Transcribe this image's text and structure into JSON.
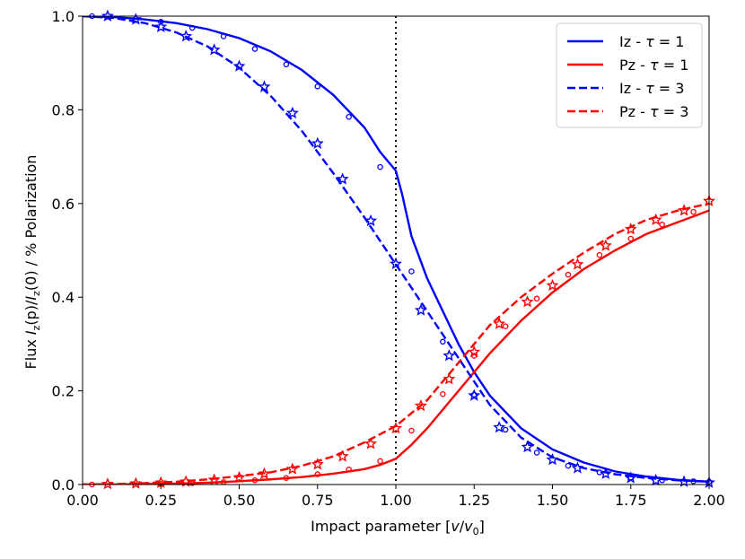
{
  "chart_data": {
    "type": "line",
    "xlabel_prefix": "Impact parameter [",
    "xlabel_var": "v",
    "xlabel_slash": "/",
    "xlabel_sub_var": "v",
    "xlabel_sub": "0",
    "xlabel_suffix": "]",
    "ylabel_prefix": "Flux ",
    "ylabel_I": "I",
    "ylabel_z": "z",
    "ylabel_p": "(p)/",
    "ylabel_I2": "I",
    "ylabel_z2": "z",
    "ylabel_rest": "(0) / % Polarization",
    "xlim": [
      0.0,
      2.0
    ],
    "ylim": [
      0.0,
      1.0
    ],
    "x_ticks": [
      "0.00",
      "0.25",
      "0.50",
      "0.75",
      "1.00",
      "1.25",
      "1.50",
      "1.75",
      "2.00"
    ],
    "x_tick_values": [
      0.0,
      0.25,
      0.5,
      0.75,
      1.0,
      1.25,
      1.5,
      1.75,
      2.0
    ],
    "y_ticks": [
      "0.0",
      "0.2",
      "0.4",
      "0.6",
      "0.8",
      "1.0"
    ],
    "y_tick_values": [
      0.0,
      0.2,
      0.4,
      0.6,
      0.8,
      1.0
    ],
    "vline_x": 1.0,
    "legend_position": "top-right",
    "colors": {
      "blue": "#0000ff",
      "red": "#ff0000"
    },
    "series": [
      {
        "name": "Iz - τ = 1",
        "legend_prefix": "Iz  - ",
        "legend_tau": "τ",
        "legend_suffix": " = 1",
        "color": "#0000ff",
        "style": "solid",
        "x": [
          0.0,
          0.1,
          0.2,
          0.3,
          0.4,
          0.5,
          0.6,
          0.7,
          0.8,
          0.9,
          0.95,
          1.0,
          1.02,
          1.05,
          1.1,
          1.15,
          1.2,
          1.25,
          1.3,
          1.4,
          1.5,
          1.6,
          1.7,
          1.8,
          1.9,
          2.0
        ],
        "y": [
          1.0,
          0.998,
          0.993,
          0.985,
          0.972,
          0.953,
          0.925,
          0.885,
          0.832,
          0.762,
          0.71,
          0.67,
          0.62,
          0.53,
          0.44,
          0.37,
          0.3,
          0.24,
          0.19,
          0.12,
          0.075,
          0.047,
          0.028,
          0.017,
          0.01,
          0.006
        ]
      },
      {
        "name": "Pz - τ = 1",
        "legend_prefix": "Pz  - ",
        "legend_tau": "τ",
        "legend_suffix": " = 1",
        "color": "#ff0000",
        "style": "solid",
        "x": [
          0.0,
          0.1,
          0.2,
          0.3,
          0.4,
          0.5,
          0.6,
          0.7,
          0.8,
          0.9,
          0.95,
          1.0,
          1.05,
          1.1,
          1.15,
          1.2,
          1.25,
          1.3,
          1.4,
          1.5,
          1.6,
          1.7,
          1.8,
          1.9,
          2.0
        ],
        "y": [
          0.0,
          0.0,
          0.001,
          0.002,
          0.004,
          0.007,
          0.011,
          0.016,
          0.023,
          0.033,
          0.042,
          0.055,
          0.085,
          0.12,
          0.16,
          0.2,
          0.24,
          0.28,
          0.35,
          0.41,
          0.46,
          0.5,
          0.535,
          0.56,
          0.585
        ]
      },
      {
        "name": "Iz - τ = 3",
        "legend_prefix": "Iz  - ",
        "legend_tau": "τ",
        "legend_suffix": " = 3",
        "color": "#0000ff",
        "style": "dashed",
        "x": [
          0.0,
          0.1,
          0.2,
          0.3,
          0.4,
          0.5,
          0.6,
          0.7,
          0.8,
          0.9,
          1.0,
          1.1,
          1.2,
          1.3,
          1.4,
          1.5,
          1.6,
          1.7,
          1.8,
          1.9,
          2.0
        ],
        "y": [
          1.0,
          0.996,
          0.985,
          0.965,
          0.935,
          0.89,
          0.83,
          0.755,
          0.665,
          0.57,
          0.47,
          0.37,
          0.27,
          0.17,
          0.1,
          0.058,
          0.035,
          0.022,
          0.014,
          0.009,
          0.006
        ]
      },
      {
        "name": "Pz - τ = 3",
        "legend_prefix": "Pz  - ",
        "legend_tau": "τ",
        "legend_suffix": " = 3",
        "color": "#ff0000",
        "style": "dashed",
        "x": [
          0.0,
          0.1,
          0.2,
          0.3,
          0.4,
          0.5,
          0.6,
          0.7,
          0.8,
          0.9,
          1.0,
          1.1,
          1.2,
          1.3,
          1.4,
          1.5,
          1.6,
          1.7,
          1.8,
          1.9,
          2.0
        ],
        "y": [
          0.0,
          0.001,
          0.003,
          0.006,
          0.011,
          0.018,
          0.026,
          0.04,
          0.06,
          0.09,
          0.125,
          0.18,
          0.26,
          0.34,
          0.4,
          0.45,
          0.495,
          0.535,
          0.565,
          0.585,
          0.6
        ]
      }
    ],
    "markers": [
      {
        "name": "Iz τ=1 circles",
        "color": "#0000ff",
        "shape": "circle",
        "x": [
          0.03,
          0.25,
          0.35,
          0.45,
          0.55,
          0.65,
          0.75,
          0.85,
          0.95,
          1.05,
          1.15,
          1.25,
          1.35,
          1.45,
          1.55,
          1.65,
          1.75,
          1.85,
          1.95,
          2.0
        ],
        "y": [
          1.0,
          0.988,
          0.975,
          0.957,
          0.93,
          0.897,
          0.85,
          0.785,
          0.678,
          0.455,
          0.305,
          0.192,
          0.117,
          0.068,
          0.04,
          0.026,
          0.015,
          0.009,
          0.007,
          0.006
        ]
      },
      {
        "name": "Pz τ=1 circles",
        "color": "#ff0000",
        "shape": "circle",
        "x": [
          0.03,
          0.25,
          0.35,
          0.45,
          0.55,
          0.65,
          0.75,
          0.85,
          0.95,
          1.05,
          1.15,
          1.25,
          1.35,
          1.45,
          1.55,
          1.65,
          1.75,
          1.85,
          1.95
        ],
        "y": [
          0.0,
          0.001,
          0.003,
          0.005,
          0.009,
          0.014,
          0.022,
          0.032,
          0.05,
          0.115,
          0.193,
          0.275,
          0.338,
          0.397,
          0.448,
          0.49,
          0.525,
          0.555,
          0.582
        ]
      },
      {
        "name": "Iz τ=3 stars",
        "color": "#0000ff",
        "shape": "star",
        "x": [
          0.08,
          0.17,
          0.25,
          0.33,
          0.42,
          0.5,
          0.58,
          0.67,
          0.75,
          0.83,
          0.92,
          1.0,
          1.08,
          1.17,
          1.25,
          1.33,
          1.42,
          1.5,
          1.58,
          1.67,
          1.75,
          1.83,
          1.92,
          2.0
        ],
        "y": [
          1.0,
          0.993,
          0.977,
          0.957,
          0.928,
          0.893,
          0.849,
          0.793,
          0.728,
          0.652,
          0.563,
          0.471,
          0.372,
          0.275,
          0.19,
          0.122,
          0.08,
          0.053,
          0.035,
          0.023,
          0.014,
          0.009,
          0.006,
          0.004
        ]
      },
      {
        "name": "Pz τ=3 stars",
        "color": "#ff0000",
        "shape": "star",
        "x": [
          0.08,
          0.17,
          0.25,
          0.33,
          0.42,
          0.5,
          0.58,
          0.67,
          0.75,
          0.83,
          0.92,
          1.0,
          1.08,
          1.17,
          1.25,
          1.33,
          1.42,
          1.5,
          1.58,
          1.67,
          1.75,
          1.83,
          1.92,
          2.0
        ],
        "y": [
          0.001,
          0.002,
          0.004,
          0.006,
          0.01,
          0.015,
          0.023,
          0.033,
          0.043,
          0.06,
          0.087,
          0.12,
          0.168,
          0.225,
          0.283,
          0.343,
          0.39,
          0.425,
          0.47,
          0.51,
          0.545,
          0.565,
          0.585,
          0.605
        ]
      }
    ]
  }
}
